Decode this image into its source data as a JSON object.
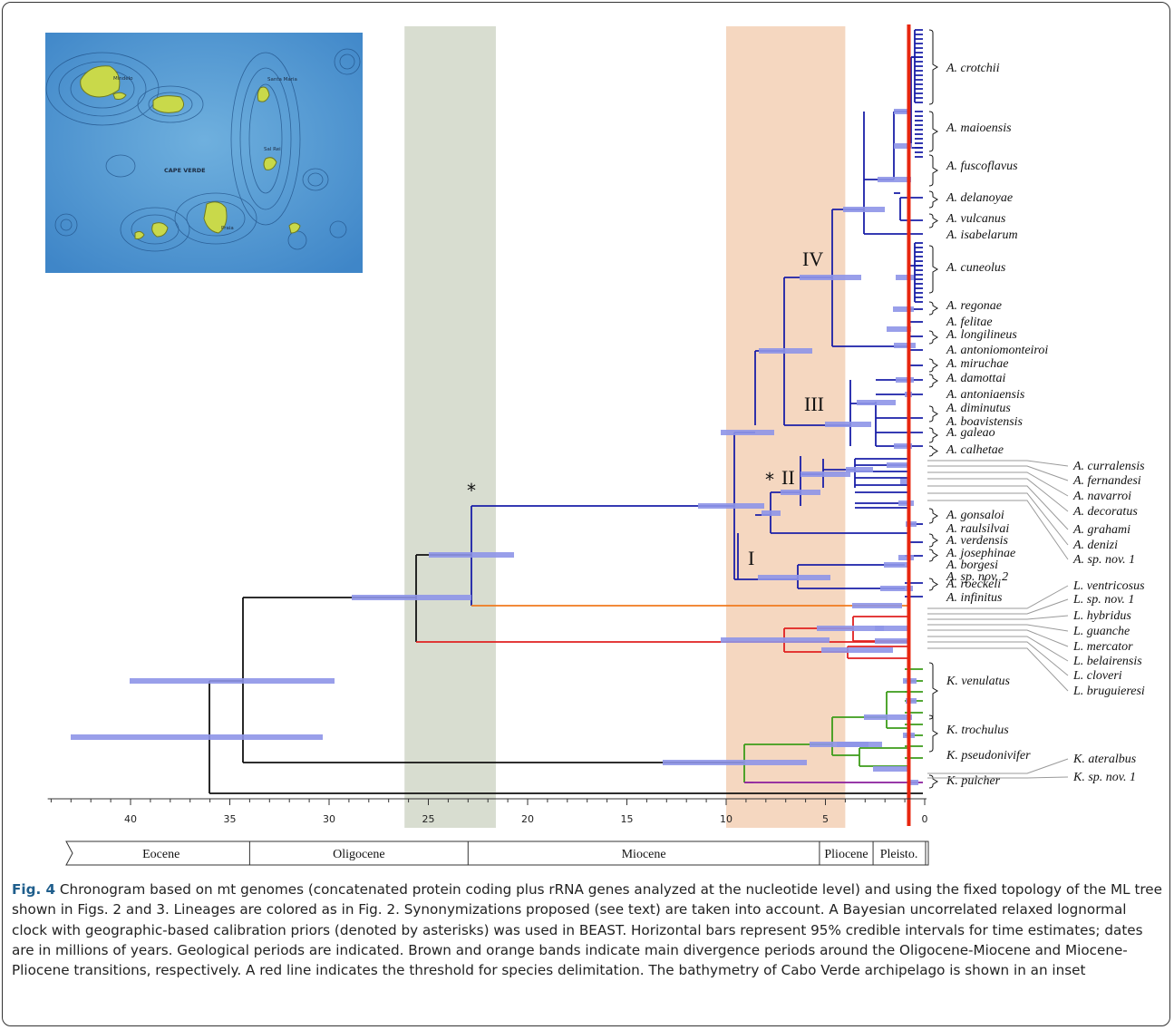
{
  "figure": {
    "chart_data": {
      "type": "chronogram",
      "axis_unit": "Ma",
      "x_ticks": [
        40,
        35,
        30,
        25,
        20,
        15,
        10,
        5,
        0
      ],
      "xlim": [
        44.4,
        0
      ],
      "threshold_age": 0.8,
      "bands": [
        {
          "name": "Oligocene-Miocene",
          "from": 26.2,
          "to": 21.6,
          "color": "#d8ddd0"
        },
        {
          "name": "Miocene-Pliocene",
          "from": 10.0,
          "to": 4.0,
          "color": "#f5d7c0"
        }
      ],
      "periods": [
        {
          "label": "Eocene",
          "from": 44.4,
          "to": 34.0
        },
        {
          "label": "Oligocene",
          "from": 34.0,
          "to": 23.0
        },
        {
          "label": "Miocene",
          "from": 23.0,
          "to": 5.3
        },
        {
          "label": "Pliocene",
          "from": 5.3,
          "to": 2.6
        },
        {
          "label": "Pleisto.",
          "from": 2.6,
          "to": 0.0
        }
      ],
      "clade_labels": [
        "I",
        "II",
        "III",
        "IV"
      ],
      "calibration_marker": "*",
      "taxa_bracketed": [
        "A. crotchii",
        "A. maioensis",
        "A. fuscoflavus",
        "A. delanoyae",
        "A. vulcanus",
        "A. cuneolus",
        "A. regonae",
        "A. longilineus",
        "A. miruchae",
        "A. damottai",
        "A. diminutus",
        "A. galeao",
        "A. calhetae",
        "A. gonsaloi",
        "A. verdensis",
        "A. josephinae",
        "A. roeckeli",
        "K. venulatus",
        "K. trochulus",
        "K. pulcher"
      ],
      "taxa_plain": [
        "A. isabelarum",
        "A. felitae",
        "A. antoniomonteiroi",
        "A. antoniaensis",
        "A. boavistensis",
        "A. raulsilvai",
        "A. borgesi",
        "A. sp. nov. 2",
        "A. infinitus",
        "K. pseudonivifer"
      ],
      "taxa_callout": [
        "A. curralensis",
        "A. fernandesi",
        "A. navarroi",
        "A. decoratus",
        "A. grahami",
        "A. denizi",
        "A. sp. nov. 1",
        "L. ventricosus",
        "L. sp. nov. 1",
        "L. hybridus",
        "L. guanche",
        "L. mercator",
        "L. belairensis",
        "L. cloveri",
        "L. bruguieresi",
        "K. ateralbus",
        "K. sp. nov. 1"
      ],
      "lineage_colors": {
        "Africonus": "#1a1fa8",
        "orange": "#f07a1e",
        "Lautoconus": "#e02020",
        "Kalloconus": "#3c9c1a",
        "pulcher": "#8a1c9c",
        "outgroup": "#111111"
      }
    },
    "inset": {
      "labels": [
        "CAPE VERDE",
        "Mindelo",
        "Santa Maria",
        "Sal Rei",
        "Praia"
      ]
    }
  },
  "caption": {
    "label": "Fig. 4",
    "text": " Chronogram based on mt genomes (concatenated protein coding plus rRNA genes analyzed at the nucleotide level) and using the fixed topology of the ML tree shown in Figs. 2 and 3. Lineages are colored as in Fig. 2. Synonymizations proposed (see text) are taken into account. A Bayesian uncorrelated relaxed lognormal clock with geographic-based calibration priors (denoted by asterisks) was used in BEAST. Horizontal bars represent 95% credible intervals for time estimates; dates are in millions of years. Geological periods are indicated. Brown and orange bands indicate main divergence periods around the Oligocene-Miocene and Miocene-Pliocene transitions, respectively. A red line indicates the threshold for species delimitation. The bathymetry of Cabo Verde archipelago is shown in an inset"
  }
}
